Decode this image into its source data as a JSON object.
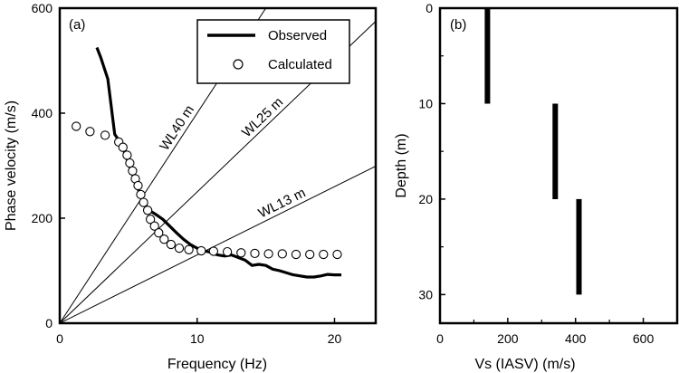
{
  "chart_data": [
    {
      "panel_label": "(a)",
      "type": "line",
      "xlabel": "Frequency (Hz)",
      "ylabel": "Phase velocity (m/s)",
      "xlim": [
        0,
        23
      ],
      "ylim": [
        0,
        600
      ],
      "x_ticks": [
        0,
        10,
        20
      ],
      "y_ticks": [
        0,
        200,
        400,
        600
      ],
      "legend_position": "top-right",
      "series": [
        {
          "name": "Observed",
          "style": "thick-line",
          "color": "#000000",
          "points": [
            [
              2.7,
              525
            ],
            [
              3.0,
              505
            ],
            [
              3.5,
              465
            ],
            [
              4.0,
              360
            ],
            [
              4.5,
              340
            ],
            [
              5.0,
              305
            ],
            [
              5.5,
              270
            ],
            [
              6.0,
              235
            ],
            [
              6.5,
              215
            ],
            [
              7.0,
              207
            ],
            [
              7.5,
              198
            ],
            [
              8.0,
              185
            ],
            [
              8.5,
              172
            ],
            [
              9.0,
              160
            ],
            [
              9.5,
              150
            ],
            [
              10.0,
              143
            ],
            [
              10.5,
              138
            ],
            [
              11.0,
              135
            ],
            [
              11.5,
              130
            ],
            [
              12.0,
              128
            ],
            [
              12.5,
              130
            ],
            [
              13.0,
              125
            ],
            [
              13.5,
              120
            ],
            [
              14.0,
              110
            ],
            [
              14.5,
              112
            ],
            [
              15.0,
              110
            ],
            [
              15.5,
              103
            ],
            [
              16.0,
              100
            ],
            [
              17.0,
              92
            ],
            [
              18.0,
              88
            ],
            [
              18.5,
              88
            ],
            [
              19.0,
              90
            ],
            [
              19.5,
              93
            ],
            [
              20.0,
              92
            ],
            [
              20.5,
              92
            ]
          ]
        },
        {
          "name": "Calculated",
          "style": "open-circles",
          "color": "#000000",
          "points": [
            [
              1.2,
              375
            ],
            [
              2.2,
              365
            ],
            [
              3.3,
              358
            ],
            [
              4.3,
              345
            ],
            [
              4.6,
              335
            ],
            [
              4.9,
              320
            ],
            [
              5.1,
              305
            ],
            [
              5.3,
              290
            ],
            [
              5.5,
              275
            ],
            [
              5.7,
              262
            ],
            [
              5.9,
              245
            ],
            [
              6.1,
              230
            ],
            [
              6.4,
              215
            ],
            [
              6.6,
              198
            ],
            [
              6.9,
              185
            ],
            [
              7.2,
              172
            ],
            [
              7.6,
              160
            ],
            [
              8.1,
              150
            ],
            [
              8.7,
              143
            ],
            [
              9.4,
              140
            ],
            [
              10.3,
              138
            ],
            [
              11.2,
              137
            ],
            [
              12.2,
              136
            ],
            [
              13.2,
              134
            ],
            [
              14.2,
              133
            ],
            [
              15.2,
              132
            ],
            [
              16.2,
              132
            ],
            [
              17.2,
              131
            ],
            [
              18.2,
              131
            ],
            [
              19.2,
              131
            ],
            [
              20.2,
              131
            ]
          ]
        }
      ],
      "reference_lines": [
        {
          "label": "WL40 m",
          "slope": 40
        },
        {
          "label": "WL25 m",
          "slope": 25
        },
        {
          "label": "WL13 m",
          "slope": 13
        }
      ]
    },
    {
      "panel_label": "(b)",
      "type": "bar",
      "xlabel": "Vs (IASV) (m/s)",
      "ylabel": "Depth (m)",
      "xlim": [
        0,
        700
      ],
      "ylim": [
        0,
        33
      ],
      "y_inverted": true,
      "x_ticks": [
        0,
        200,
        400,
        600
      ],
      "y_ticks": [
        0,
        10,
        20,
        30
      ],
      "color": "#000000",
      "layers": [
        {
          "vs": 140,
          "depth_top": 0,
          "depth_bottom": 10
        },
        {
          "vs": 340,
          "depth_top": 10,
          "depth_bottom": 20
        },
        {
          "vs": 410,
          "depth_top": 20,
          "depth_bottom": 30
        }
      ]
    }
  ]
}
